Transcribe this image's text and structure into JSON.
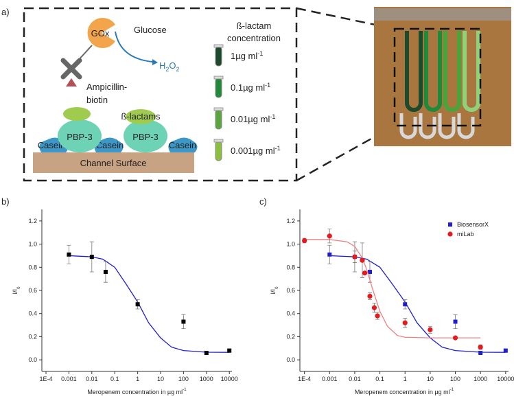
{
  "diagram": {
    "label": "a)",
    "gox": "GOx",
    "glucose": "Glucose",
    "h2o2": [
      "H",
      "2",
      "O",
      "2"
    ],
    "ampicillin": [
      "Ampicillin-",
      "biotin"
    ],
    "pbp": [
      "PBP-3",
      "PBP-3"
    ],
    "beta_lactams": "ß-lactams",
    "casein": [
      "Casein",
      "Casein",
      "Casein"
    ],
    "surface": "Channel Surface",
    "legend_title": [
      "ß-lactam",
      "concentration"
    ],
    "concentrations": [
      {
        "text": "1µg ml",
        "sup": "-1"
      },
      {
        "text": "0.1µg ml",
        "sup": "-1"
      },
      {
        "text": "0.01µg ml",
        "sup": "-1"
      },
      {
        "text": "0.001µg ml",
        "sup": "-1"
      }
    ]
  },
  "chart_data": [
    {
      "type": "scatter",
      "label": "b)",
      "x_label": {
        "text": "Meropenem concentration in µg ml",
        "sup": "-1"
      },
      "y_label": {
        "text": "I/I",
        "sub": "0"
      },
      "xscale": "log",
      "xlim": [
        6.6e-05,
        13000
      ],
      "ylim": [
        -0.1,
        1.3
      ],
      "xticks": [
        {
          "value": 0.0001,
          "label": "1E-4"
        },
        0.001,
        0.01,
        0.1,
        1,
        10,
        100,
        1000,
        10000
      ],
      "yticks": [
        {
          "value": 0,
          "label": "0.0"
        },
        0.2,
        0.4,
        0.6,
        0.8,
        {
          "value": 1,
          "label": "1.0"
        },
        1.2
      ],
      "series": [
        {
          "color": "#000000",
          "marker": "square",
          "x": [
            0.001,
            0.01,
            0.04,
            1,
            100,
            1000,
            10000
          ],
          "values": [
            0.91,
            0.89,
            0.76,
            0.48,
            0.33,
            0.06,
            0.08
          ],
          "errors": [
            0.08,
            0.13,
            0.09,
            0.04,
            0.06,
            null,
            0.015
          ],
          "fit": {
            "color": "#1f1fd0",
            "x": [
              0.001,
              0.01,
              0.03,
              0.1,
              0.3,
              1,
              3,
              10,
              30,
              100,
              1000,
              10000
            ],
            "values": [
              0.9,
              0.89,
              0.87,
              0.8,
              0.66,
              0.5,
              0.32,
              0.19,
              0.11,
              0.08,
              0.066,
              0.065
            ]
          }
        }
      ]
    },
    {
      "type": "scatter",
      "label": "c)",
      "x_label": {
        "text": "Meropenem concentration in µg ml",
        "sup": "-1"
      },
      "y_label": {
        "text": "I/I",
        "sub": "0"
      },
      "xscale": "log",
      "xlim": [
        6.6e-05,
        13000
      ],
      "ylim": [
        -0.1,
        1.3
      ],
      "xticks": [
        {
          "value": 0.0001,
          "label": "1E-4"
        },
        0.001,
        0.01,
        0.1,
        1,
        10,
        100,
        1000,
        10000
      ],
      "yticks": [
        {
          "value": 0,
          "label": "0.0"
        },
        0.2,
        0.4,
        0.6,
        0.8,
        {
          "value": 1,
          "label": "1.0"
        },
        1.2
      ],
      "series": [
        {
          "name": "BiosensorX",
          "color": "#1f1fd0",
          "marker": "square",
          "x": [
            0.001,
            0.01,
            0.04,
            1,
            100,
            1000,
            10000
          ],
          "values": [
            0.91,
            0.89,
            0.76,
            0.48,
            0.33,
            0.06,
            0.08
          ],
          "errors": [
            0.08,
            0.13,
            0.09,
            0.04,
            0.06,
            null,
            0.015
          ],
          "fit": {
            "color": "#1f1fd0",
            "x": [
              0.001,
              0.01,
              0.03,
              0.1,
              0.3,
              1,
              3,
              10,
              30,
              100,
              1000,
              10000
            ],
            "values": [
              0.9,
              0.89,
              0.87,
              0.8,
              0.66,
              0.5,
              0.32,
              0.19,
              0.11,
              0.08,
              0.066,
              0.065
            ]
          }
        },
        {
          "name": "miLab",
          "color": "#e41a1c",
          "marker": "circle",
          "x": [
            0.0001,
            0.001,
            0.01,
            0.02,
            0.025,
            0.04,
            0.06,
            0.08,
            1,
            10,
            100,
            1000
          ],
          "values": [
            1.03,
            1.07,
            0.89,
            0.86,
            0.75,
            0.55,
            0.45,
            0.38,
            0.32,
            0.26,
            0.19,
            0.11
          ],
          "errors": [
            0.02,
            0.06,
            0.05,
            0.15,
            null,
            0.03,
            0.04,
            0.03,
            0.04,
            0.03,
            null,
            0.02
          ],
          "fit": {
            "color": "#f08080",
            "x": [
              0.0001,
              0.001,
              0.005,
              0.01,
              0.02,
              0.03,
              0.05,
              0.1,
              0.2,
              0.5,
              1,
              10,
              1000
            ],
            "values": [
              1.04,
              1.04,
              1.02,
              0.98,
              0.88,
              0.78,
              0.62,
              0.42,
              0.29,
              0.21,
              0.195,
              0.19,
              0.19
            ]
          }
        }
      ],
      "legend": "top-right"
    }
  ]
}
